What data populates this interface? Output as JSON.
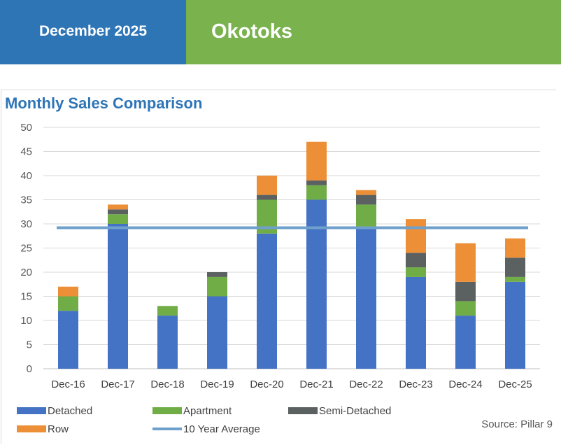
{
  "header": {
    "date": "December 2025",
    "location": "Okotoks"
  },
  "colors": {
    "header_date_bg": "#2e75b6",
    "header_city_bg": "#7ab24e",
    "title": "#2e75b6"
  },
  "chart_data": {
    "type": "bar",
    "stacked": true,
    "title": "Monthly Sales Comparison",
    "categories": [
      "Dec-16",
      "Dec-17",
      "Dec-18",
      "Dec-19",
      "Dec-20",
      "Dec-21",
      "Dec-22",
      "Dec-23",
      "Dec-24",
      "Dec-25"
    ],
    "series": [
      {
        "name": "Detached",
        "color": "#4472c4",
        "values": [
          12,
          30,
          11,
          15,
          28,
          35,
          29,
          19,
          11,
          18
        ]
      },
      {
        "name": "Apartment",
        "color": "#70ad47",
        "values": [
          3,
          2,
          2,
          4,
          7,
          3,
          5,
          2,
          3,
          1
        ]
      },
      {
        "name": "Semi-Detached",
        "color": "#5a6160",
        "values": [
          0,
          1,
          0,
          1,
          1,
          1,
          2,
          3,
          4,
          4
        ]
      },
      {
        "name": "Row",
        "color": "#ed8f37",
        "values": [
          2,
          1,
          0,
          0,
          4,
          8,
          1,
          7,
          8,
          4
        ]
      }
    ],
    "average_line": {
      "name": "10 Year Average",
      "color": "#6fa0cc",
      "value": 29.2
    },
    "yticks": [
      0,
      5,
      10,
      15,
      20,
      25,
      30,
      35,
      40,
      45,
      50
    ],
    "ylim": [
      0,
      50
    ],
    "grid": true,
    "legend_position": "bottom-left",
    "source": "Source: Pillar 9"
  }
}
